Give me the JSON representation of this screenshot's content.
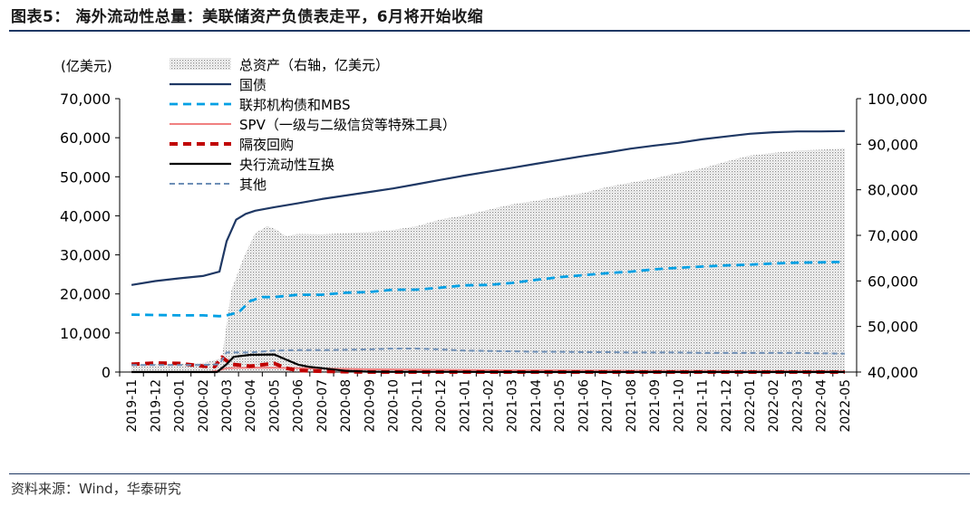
{
  "title": "图表5： 海外流动性总量：美联储资产负债表走平，6月将开始收缩",
  "source": "资料来源：Wind，华泰研究",
  "chart_data": {
    "type": "line",
    "title": "海外流动性总量：美联储资产负债表走平，6月将开始收缩",
    "left_axis_label": "(亿美元)",
    "ylim_left": [
      0,
      70000
    ],
    "ylim_right": [
      40000,
      100000
    ],
    "left_ticks": [
      "0",
      "10,000",
      "20,000",
      "30,000",
      "40,000",
      "50,000",
      "60,000",
      "70,000"
    ],
    "right_ticks": [
      "40,000",
      "50,000",
      "60,000",
      "70,000",
      "80,000",
      "90,000",
      "100,000"
    ],
    "categories": [
      "2019-11",
      "2019-12",
      "2020-01",
      "2020-02",
      "2020-03",
      "2020-04",
      "2020-05",
      "2020-06",
      "2020-07",
      "2020-08",
      "2020-09",
      "2020-10",
      "2020-11",
      "2020-12",
      "2021-01",
      "2021-02",
      "2021-03",
      "2021-04",
      "2021-05",
      "2021-06",
      "2021-07",
      "2021-08",
      "2021-09",
      "2021-10",
      "2021-11",
      "2021-12",
      "2022-01",
      "2022-02",
      "2022-03",
      "2022-04",
      "2022-05"
    ],
    "legend_position": "top-left",
    "series": [
      {
        "name": "总资产（右轴，亿美元）",
        "axis": "right",
        "style": "area-dotted",
        "color": "#b0b0b0",
        "x": [
          0,
          1,
          2,
          3,
          3.8,
          4.2,
          4.7,
          5.2,
          5.7,
          6,
          6.5,
          7,
          8,
          9,
          10,
          11,
          12,
          13,
          14,
          15,
          16,
          17,
          18,
          19,
          20,
          21,
          22,
          23,
          24,
          25,
          26,
          27,
          28,
          29,
          30
        ],
        "values": [
          41400,
          41700,
          41800,
          42000,
          43000,
          58000,
          65000,
          70500,
          72000,
          71500,
          69800,
          70300,
          70200,
          70500,
          70700,
          71200,
          72000,
          73500,
          74400,
          75600,
          76800,
          77600,
          78500,
          79300,
          80600,
          81600,
          82500,
          83700,
          84700,
          86200,
          87500,
          88100,
          88600,
          88800,
          89100
        ]
      },
      {
        "name": "国债",
        "axis": "left",
        "style": "solid",
        "color": "#1f3864",
        "x": [
          0,
          1,
          2,
          3,
          3.7,
          4,
          4.4,
          4.8,
          5.2,
          6,
          7,
          8,
          9,
          10,
          11,
          12,
          13,
          14,
          15,
          16,
          17,
          18,
          19,
          20,
          21,
          22,
          23,
          24,
          25,
          26,
          27,
          28,
          29,
          30
        ],
        "values": [
          22300,
          23300,
          24000,
          24600,
          25700,
          33500,
          39000,
          40500,
          41300,
          42200,
          43200,
          44300,
          45200,
          46100,
          47000,
          48100,
          49200,
          50300,
          51300,
          52300,
          53300,
          54300,
          55300,
          56200,
          57200,
          58000,
          58700,
          59600,
          60300,
          61000,
          61400,
          61600,
          61600,
          61700
        ]
      },
      {
        "name": "联邦机构债和MBS",
        "axis": "left",
        "style": "dashed",
        "color": "#00a0e4",
        "x": [
          0,
          1,
          2,
          3,
          3.7,
          4,
          4.5,
          5,
          5.5,
          6,
          7,
          8,
          9,
          10,
          11,
          12,
          13,
          14,
          15,
          16,
          17,
          18,
          19,
          20,
          21,
          22,
          23,
          24,
          25,
          26,
          27,
          28,
          29,
          30
        ],
        "values": [
          14700,
          14600,
          14500,
          14500,
          14300,
          14500,
          15300,
          18200,
          19200,
          19200,
          19800,
          19800,
          20300,
          20500,
          21100,
          21100,
          21600,
          22200,
          22300,
          22800,
          23600,
          24300,
          24800,
          25300,
          25700,
          26300,
          26700,
          27000,
          27300,
          27500,
          27800,
          28000,
          28100,
          28200
        ]
      },
      {
        "name": "SPV（一级与二级信贷等特殊工具）",
        "axis": "left",
        "style": "solid",
        "color": "#f08080",
        "x": [
          0,
          3.3,
          3.6,
          4,
          5,
          6,
          7,
          8,
          9,
          10,
          12,
          14,
          16,
          18,
          20,
          22,
          24,
          26,
          28,
          30
        ],
        "values": [
          0,
          0,
          300,
          1000,
          1100,
          1100,
          1000,
          900,
          800,
          700,
          600,
          500,
          450,
          400,
          350,
          300,
          280,
          250,
          230,
          220
        ]
      },
      {
        "name": "隔夜回购",
        "axis": "left",
        "style": "dashed-thick",
        "color": "#c00000",
        "x": [
          0,
          1,
          2,
          3,
          3.5,
          3.8,
          4.2,
          5,
          6,
          6.5,
          7,
          8,
          9,
          10,
          12,
          14,
          16,
          18,
          20,
          22,
          24,
          26,
          28,
          30
        ],
        "values": [
          2000,
          2300,
          2200,
          1500,
          1400,
          3800,
          2000,
          1500,
          2200,
          1000,
          400,
          200,
          100,
          0,
          0,
          0,
          0,
          0,
          0,
          0,
          0,
          0,
          0,
          0
        ]
      },
      {
        "name": "央行流动性互换",
        "axis": "left",
        "style": "solid",
        "color": "#000000",
        "x": [
          0,
          3.6,
          4,
          4.3,
          5,
          6,
          6.5,
          7,
          7.5,
          8,
          9,
          10,
          11,
          12,
          13,
          14,
          16,
          18,
          20,
          22,
          24,
          26,
          28,
          30
        ],
        "values": [
          0,
          0,
          2000,
          3900,
          4400,
          4500,
          3200,
          1900,
          1300,
          1000,
          300,
          100,
          50,
          50,
          50,
          50,
          0,
          0,
          0,
          0,
          0,
          0,
          0,
          0
        ]
      },
      {
        "name": "其他",
        "axis": "left",
        "style": "dashed",
        "color": "#6e8fb6",
        "x": [
          0,
          1,
          2,
          3,
          3.7,
          4,
          5,
          6,
          7,
          8,
          9,
          10,
          11,
          12,
          13,
          14,
          15,
          16,
          17,
          18,
          19,
          20,
          21,
          22,
          23,
          24,
          25,
          26,
          27,
          28,
          29,
          30
        ],
        "values": [
          1800,
          1800,
          1800,
          1800,
          2000,
          5000,
          5000,
          5500,
          5600,
          5600,
          5700,
          5800,
          6000,
          6000,
          5800,
          5500,
          5400,
          5300,
          5200,
          5200,
          5100,
          5100,
          5000,
          5000,
          5000,
          4900,
          4900,
          4900,
          4900,
          4900,
          4800,
          4700
        ]
      }
    ]
  }
}
